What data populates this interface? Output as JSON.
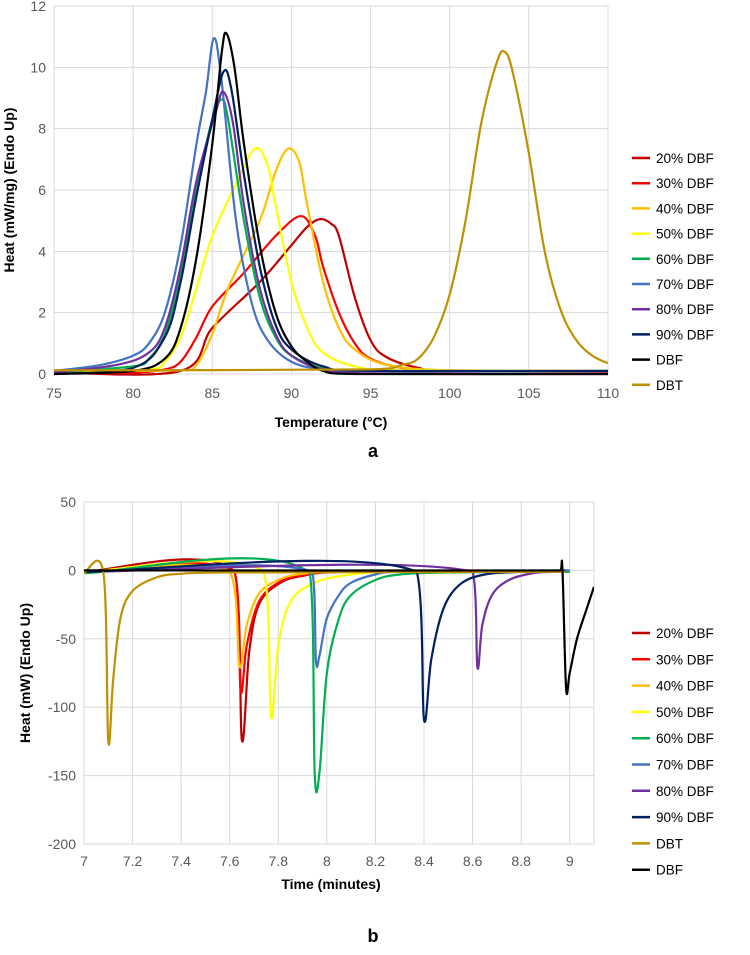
{
  "chart_data": [
    {
      "type": "line",
      "panel_label": "a",
      "xlabel": "Temperature (°C)",
      "ylabel": "Heat (mW/mg) (Endo Up)",
      "xlim": [
        75,
        110
      ],
      "ylim": [
        0,
        12
      ],
      "xticks": [
        75,
        80,
        85,
        90,
        95,
        100,
        105,
        110
      ],
      "yticks": [
        0,
        2,
        4,
        6,
        8,
        10,
        12
      ],
      "grid": true,
      "legend_position": "right",
      "series": [
        {
          "name": "20% DBF",
          "color": "#C00000",
          "x": [
            75,
            83,
            85,
            88,
            90,
            91,
            91.8,
            92.5,
            93,
            94,
            95,
            96,
            98,
            100,
            110
          ],
          "y": [
            0.05,
            0.1,
            1.5,
            3,
            4.2,
            4.8,
            5.05,
            4.9,
            4.5,
            2.5,
            1.1,
            0.55,
            0.2,
            0.1,
            0.08
          ]
        },
        {
          "name": "30% DBF",
          "color": "#FF0000",
          "x": [
            75,
            80,
            82,
            83,
            84,
            85,
            87,
            89,
            90.6,
            91.5,
            92,
            93,
            94,
            95,
            97,
            100,
            110
          ],
          "y": [
            0.02,
            0.05,
            0.15,
            0.4,
            1.2,
            2.2,
            3.3,
            4.5,
            5.15,
            4.5,
            3.5,
            2,
            1,
            0.5,
            0.2,
            0.12,
            0.1
          ]
        },
        {
          "name": "40% DBF",
          "color": "#FFC000",
          "x": [
            75,
            83,
            84,
            85,
            86,
            88,
            89,
            89.8,
            90.5,
            91,
            92,
            93,
            94,
            96,
            100,
            110
          ],
          "y": [
            0.1,
            0.12,
            0.3,
            1.3,
            2.8,
            5,
            6.6,
            7.35,
            6.9,
            5.5,
            3,
            1.5,
            0.8,
            0.3,
            0.12,
            0.1
          ]
        },
        {
          "name": "50% DBF",
          "color": "#FFFF00",
          "x": [
            75,
            81,
            82,
            83,
            84,
            85,
            86.5,
            87.7,
            88.5,
            89,
            90,
            91,
            92,
            94,
            97,
            110
          ],
          "y": [
            0.1,
            0.15,
            0.4,
            1.2,
            2.8,
            4.5,
            6.2,
            7.35,
            6.8,
            5.5,
            3,
            1.5,
            0.7,
            0.25,
            0.12,
            0.1
          ]
        },
        {
          "name": "60% DBF",
          "color": "#00B050",
          "x": [
            75,
            80,
            81,
            82,
            83,
            84,
            85,
            85.6,
            86,
            87,
            88,
            89,
            90,
            92,
            95,
            110
          ],
          "y": [
            0.05,
            0.25,
            0.5,
            1.3,
            3.2,
            6,
            8.3,
            8.95,
            8.3,
            5,
            2.5,
            1.2,
            0.6,
            0.2,
            0.1,
            0.1
          ]
        },
        {
          "name": "70% DBF",
          "color": "#4472C4",
          "x": [
            75,
            78,
            80,
            81,
            82,
            83,
            84,
            84.6,
            85.1,
            85.6,
            86.5,
            87.5,
            88.5,
            90,
            92,
            95,
            110
          ],
          "y": [
            0.1,
            0.3,
            0.6,
            1,
            2,
            4.2,
            7.5,
            9.2,
            10.95,
            9.5,
            5,
            2.3,
            1.1,
            0.4,
            0.15,
            0.1,
            0.1
          ]
        },
        {
          "name": "80% DBF",
          "color": "#7030A0",
          "x": [
            75,
            79,
            81,
            82,
            83,
            84,
            85.2,
            85.7,
            86.3,
            87,
            88,
            89,
            90,
            92,
            95,
            110
          ],
          "y": [
            0.05,
            0.3,
            0.7,
            1.5,
            3.5,
            6.3,
            8.5,
            9.2,
            8.2,
            5.5,
            2.8,
            1.3,
            0.6,
            0.15,
            0.02,
            0
          ]
        },
        {
          "name": "90% DBF",
          "color": "#002060",
          "x": [
            75,
            80,
            82,
            83,
            84,
            85,
            85.7,
            86.2,
            87,
            88,
            89,
            90,
            92,
            95,
            110
          ],
          "y": [
            0,
            0.2,
            1.2,
            3,
            5.8,
            8.3,
            9.85,
            9.3,
            6.5,
            3.5,
            1.6,
            0.8,
            0.25,
            0.1,
            0.1
          ]
        },
        {
          "name": "DBF",
          "color": "#000000",
          "x": [
            75,
            80,
            82,
            83,
            84,
            85,
            85.6,
            85.9,
            86.4,
            87,
            88,
            89,
            90,
            91,
            92,
            94,
            110
          ],
          "y": [
            0,
            0.1,
            0.5,
            1.5,
            3.8,
            7.5,
            10.5,
            11.1,
            10,
            7.5,
            4.2,
            2,
            0.9,
            0.4,
            0.1,
            0,
            0
          ]
        },
        {
          "name": "DBT",
          "color": "#BF9000",
          "x": [
            75,
            95,
            97,
            98,
            99,
            100,
            101,
            102,
            103,
            103.5,
            104,
            105,
            106,
            107,
            108,
            109,
            110
          ],
          "y": [
            0.12,
            0.15,
            0.3,
            0.5,
            1.2,
            2.6,
            5,
            8.2,
            10.2,
            10.5,
            9.8,
            7.2,
            4,
            2.1,
            1.1,
            0.6,
            0.35
          ]
        }
      ]
    },
    {
      "type": "line",
      "panel_label": "b",
      "xlabel": "Time (minutes)",
      "ylabel": "Heat (mW) (Endo Up)",
      "xlim": [
        7,
        9.1
      ],
      "ylim": [
        -200,
        50
      ],
      "xticks": [
        7,
        7.2,
        7.4,
        7.6,
        7.8,
        8,
        8.2,
        8.4,
        8.6,
        8.8,
        9
      ],
      "yticks": [
        -200,
        -150,
        -100,
        -50,
        0,
        50
      ],
      "grid": true,
      "legend_position": "right",
      "series": [
        {
          "name": "20% DBF",
          "color": "#C00000",
          "x": [
            7,
            7.62,
            7.65,
            7.68,
            7.72,
            7.8,
            7.9,
            8.1,
            9
          ],
          "y": [
            -1,
            -1,
            -124,
            -60,
            -25,
            -10,
            -4,
            -1,
            -1
          ]
        },
        {
          "name": "30% DBF",
          "color": "#FF0000",
          "x": [
            7,
            7.62,
            7.645,
            7.67,
            7.72,
            7.8,
            7.9,
            8.1,
            9
          ],
          "y": [
            -1,
            -1,
            -88,
            -55,
            -23,
            -9,
            -3.5,
            -1,
            -1
          ]
        },
        {
          "name": "40% DBF",
          "color": "#FFC000",
          "x": [
            7,
            7.6,
            7.64,
            7.67,
            7.72,
            7.8,
            7.9,
            8.1,
            9
          ],
          "y": [
            -1,
            -1,
            -70,
            -40,
            -17,
            -7,
            -2.5,
            -1,
            -1
          ]
        },
        {
          "name": "50% DBF",
          "color": "#FFFF00",
          "x": [
            7,
            7.74,
            7.77,
            7.8,
            7.85,
            7.95,
            8.1,
            8.3,
            9
          ],
          "y": [
            -1,
            -1,
            -107,
            -55,
            -23,
            -9,
            -3,
            -1,
            -1
          ]
        },
        {
          "name": "60% DBF",
          "color": "#00B050",
          "x": [
            7,
            7.93,
            7.95,
            7.97,
            8,
            8.05,
            8.1,
            8.2,
            8.3,
            8.5,
            9
          ],
          "y": [
            -2,
            -2,
            -149,
            -147,
            -75,
            -35,
            -18,
            -7,
            -3,
            -1.5,
            -1
          ]
        },
        {
          "name": "70% DBF",
          "color": "#4472C4",
          "x": [
            7,
            7.94,
            7.955,
            7.97,
            8,
            8.05,
            8.1,
            8.2,
            8.3,
            9
          ],
          "y": [
            -1,
            -1,
            -66,
            -62,
            -35,
            -18,
            -9,
            -3,
            -1,
            0
          ]
        },
        {
          "name": "80% DBF",
          "color": "#7030A0",
          "x": [
            7,
            8.6,
            8.62,
            8.64,
            8.68,
            8.75,
            8.85,
            8.95
          ],
          "y": [
            -1,
            -1,
            -71,
            -40,
            -18,
            -7,
            -2,
            -1
          ]
        },
        {
          "name": "90% DBF",
          "color": "#002060",
          "x": [
            7,
            8.37,
            8.4,
            8.43,
            8.48,
            8.55,
            8.65,
            8.8,
            8.98
          ],
          "y": [
            -1,
            -1,
            -109,
            -65,
            -28,
            -10,
            -3,
            -1,
            0
          ]
        },
        {
          "name": "DBT",
          "color": "#BF9000",
          "x": [
            7,
            7.08,
            7.1,
            7.12,
            7.15,
            7.2,
            7.3,
            7.4,
            7.6,
            8.98
          ],
          "y": [
            -2,
            -2,
            -125,
            -80,
            -35,
            -15,
            -5,
            -2.5,
            -1.5,
            -1
          ]
        },
        {
          "name": "DBF",
          "color": "#000000",
          "x": [
            7,
            8.96,
            8.97,
            8.985,
            9,
            9.03,
            9.07,
            9.1
          ],
          "y": [
            0,
            0,
            1,
            -86,
            -75,
            -50,
            -28,
            -12
          ]
        }
      ]
    }
  ]
}
